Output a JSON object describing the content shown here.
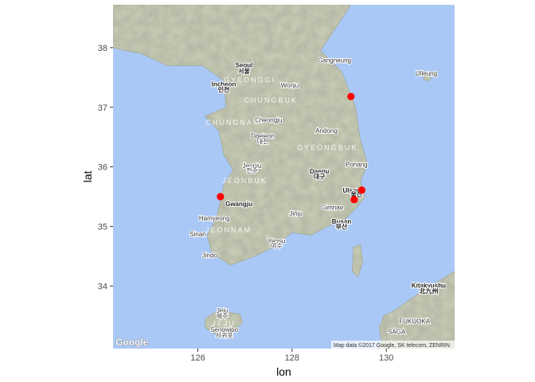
{
  "chart_data": {
    "type": "scatter",
    "xlabel": "lon",
    "ylabel": "lat",
    "xlim": [
      124.2,
      131.45
    ],
    "ylim": [
      32.95,
      38.72
    ],
    "x_ticks": [
      126,
      128,
      130
    ],
    "y_ticks": [
      34,
      35,
      36,
      37,
      38
    ],
    "points": [
      {
        "x": 129.25,
        "y": 37.18
      },
      {
        "x": 126.48,
        "y": 35.5
      },
      {
        "x": 129.48,
        "y": 35.61
      },
      {
        "x": 129.32,
        "y": 35.45
      }
    ],
    "point_color": "#ff0000",
    "grid": false,
    "background": "map"
  },
  "map": {
    "sea_color": "#aac8f5",
    "land_color": "#c9cdb7",
    "labels": [
      {
        "text": "Seoul",
        "x": 126.98,
        "y": 37.67,
        "bold": true
      },
      {
        "text": "서울",
        "x": 126.98,
        "y": 37.57,
        "bold": true
      },
      {
        "text": "Incheon",
        "x": 126.55,
        "y": 37.35,
        "bold": true
      },
      {
        "text": "인천",
        "x": 126.55,
        "y": 37.26,
        "bold": true
      },
      {
        "text": "Daegu",
        "x": 128.58,
        "y": 35.89,
        "bold": true
      },
      {
        "text": "대구",
        "x": 128.58,
        "y": 35.8,
        "bold": true
      },
      {
        "text": "Ulsan",
        "x": 129.26,
        "y": 35.57,
        "bold": true
      },
      {
        "text": "울산",
        "x": 129.37,
        "y": 35.5,
        "bold": true
      },
      {
        "text": "Busan",
        "x": 129.05,
        "y": 35.05,
        "bold": true
      },
      {
        "text": "부산",
        "x": 129.05,
        "y": 34.96,
        "bold": true
      },
      {
        "text": "Gwangju",
        "x": 126.87,
        "y": 35.34,
        "bold": true
      },
      {
        "text": "Daejeon",
        "x": 127.38,
        "y": 36.48,
        "bold": false
      },
      {
        "text": "대전",
        "x": 127.38,
        "y": 36.39,
        "bold": false
      },
      {
        "text": "Jeonju",
        "x": 127.15,
        "y": 35.98,
        "bold": false
      },
      {
        "text": "전주",
        "x": 127.15,
        "y": 35.9,
        "bold": false
      },
      {
        "text": "Pohang",
        "x": 129.37,
        "y": 36.0,
        "bold": false
      },
      {
        "text": "Gangneung",
        "x": 128.9,
        "y": 37.75,
        "bold": false
      },
      {
        "text": "Andong",
        "x": 128.73,
        "y": 36.57,
        "bold": false
      },
      {
        "text": "Wonju",
        "x": 127.95,
        "y": 37.33,
        "bold": false
      },
      {
        "text": "Cheongju",
        "x": 127.5,
        "y": 36.75,
        "bold": false
      },
      {
        "text": "Yeosu",
        "x": 127.67,
        "y": 34.72,
        "bold": false
      },
      {
        "text": "여수",
        "x": 127.67,
        "y": 34.64,
        "bold": false
      },
      {
        "text": "Gimhae",
        "x": 128.85,
        "y": 35.28,
        "bold": false
      },
      {
        "text": "Jinju",
        "x": 128.08,
        "y": 35.18,
        "bold": false
      },
      {
        "text": "Hamyeong",
        "x": 126.35,
        "y": 35.1,
        "bold": false
      },
      {
        "text": "Sinan",
        "x": 126.0,
        "y": 34.83,
        "bold": false
      },
      {
        "text": "Jindo",
        "x": 126.25,
        "y": 34.48,
        "bold": false
      },
      {
        "text": "Ulleung",
        "x": 130.85,
        "y": 37.53,
        "bold": false
      },
      {
        "text": "Jeju",
        "x": 126.52,
        "y": 33.55,
        "bold": false
      },
      {
        "text": "제주",
        "x": 126.52,
        "y": 33.46,
        "bold": false
      },
      {
        "text": "Seogwipo",
        "x": 126.56,
        "y": 33.23,
        "bold": false
      },
      {
        "text": "서귀포",
        "x": 126.56,
        "y": 33.14,
        "bold": false
      },
      {
        "text": "Kitakyushu",
        "x": 130.9,
        "y": 33.97,
        "bold": true
      },
      {
        "text": "北九州",
        "x": 130.9,
        "y": 33.88,
        "bold": true
      },
      {
        "text": "FUKUOKA",
        "x": 130.6,
        "y": 33.37,
        "bold": false
      },
      {
        "text": "SAGA",
        "x": 130.22,
        "y": 33.2,
        "bold": false
      }
    ],
    "regions": [
      {
        "text": "GYEONGGI",
        "x": 127.1,
        "y": 37.42
      },
      {
        "text": "CHUNGBUK",
        "x": 127.55,
        "y": 37.08
      },
      {
        "text": "CHUNGNAM",
        "x": 126.75,
        "y": 36.7
      },
      {
        "text": "GYEONGBUK",
        "x": 128.75,
        "y": 36.28
      },
      {
        "text": "JEONBUK",
        "x": 127.0,
        "y": 35.73
      },
      {
        "text": "JEONNAM",
        "x": 126.65,
        "y": 34.9
      },
      {
        "text": "JEJU",
        "x": 126.55,
        "y": 33.33
      }
    ],
    "google_logo": "Google",
    "attribution": "Map data ©2017 Google, SK telecom, ZENRIN"
  }
}
